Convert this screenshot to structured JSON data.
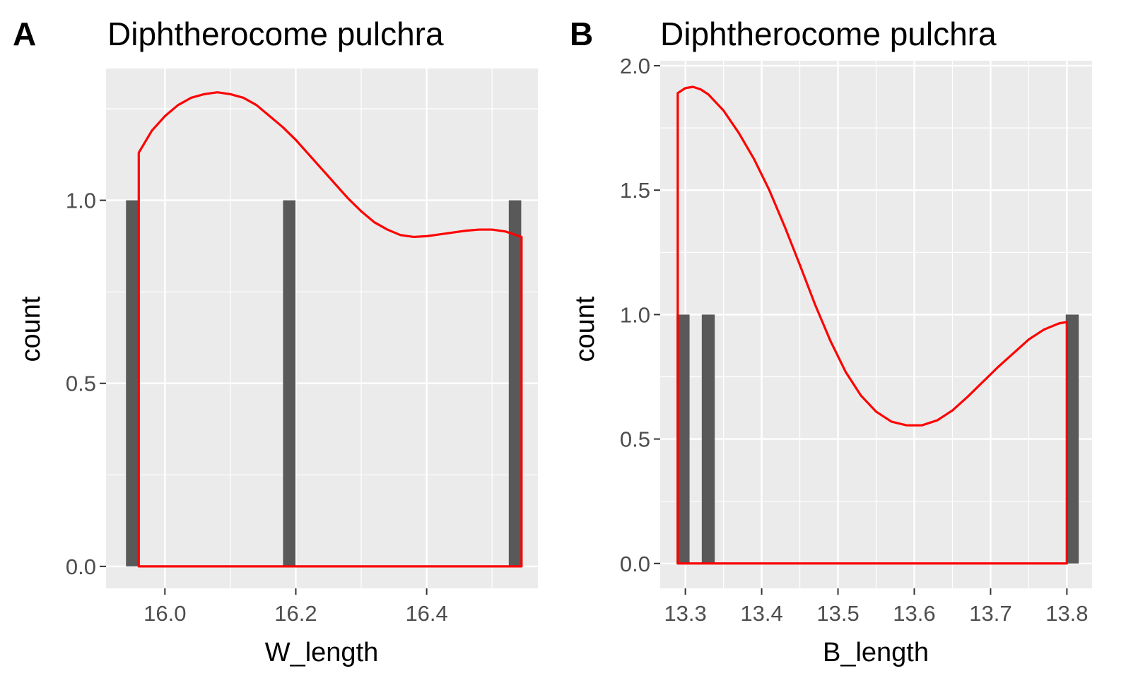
{
  "chart_data": [
    {
      "type": "bar",
      "panel_tag": "A",
      "title": "Diphtherocome pulchra",
      "xlabel": "W_length",
      "ylabel": "count",
      "xlim": [
        15.91,
        16.57
      ],
      "ylim": [
        -0.06,
        1.36
      ],
      "xticks": [
        16.0,
        16.2,
        16.4
      ],
      "xtick_labels": [
        "16.0",
        "16.2",
        "16.4"
      ],
      "yticks": [
        0.0,
        0.5,
        1.0
      ],
      "ytick_labels": [
        "0.0",
        "0.5",
        "1.0"
      ],
      "bar_width": 0.019,
      "bars": [
        {
          "x": 15.95,
          "count": 1
        },
        {
          "x": 16.19,
          "count": 1
        },
        {
          "x": 16.535,
          "count": 1
        }
      ],
      "density_color": "#ff0000",
      "bar_color": "#595959",
      "panel_bg": "#ebebeb",
      "grid": true,
      "density": {
        "x": [
          15.96,
          15.98,
          16.0,
          16.02,
          16.04,
          16.06,
          16.08,
          16.1,
          16.12,
          16.14,
          16.16,
          16.18,
          16.2,
          16.22,
          16.24,
          16.26,
          16.28,
          16.3,
          16.32,
          16.34,
          16.36,
          16.38,
          16.4,
          16.42,
          16.44,
          16.46,
          16.48,
          16.5,
          16.52,
          16.545
        ],
        "y": [
          1.13,
          1.19,
          1.23,
          1.26,
          1.28,
          1.29,
          1.295,
          1.29,
          1.28,
          1.26,
          1.23,
          1.2,
          1.165,
          1.125,
          1.085,
          1.045,
          1.005,
          0.97,
          0.94,
          0.92,
          0.905,
          0.9,
          0.902,
          0.907,
          0.912,
          0.917,
          0.92,
          0.92,
          0.915,
          0.9
        ]
      }
    },
    {
      "type": "bar",
      "panel_tag": "B",
      "title": "Diphtherocome pulchra",
      "xlabel": "B_length",
      "ylabel": "count",
      "xlim": [
        13.267,
        13.833
      ],
      "ylim": [
        -0.1,
        2.02
      ],
      "xticks": [
        13.3,
        13.4,
        13.5,
        13.6,
        13.7,
        13.8
      ],
      "xtick_labels": [
        "13.3",
        "13.4",
        "13.5",
        "13.6",
        "13.7",
        "13.8"
      ],
      "yticks": [
        0.0,
        0.5,
        1.0,
        1.5,
        2.0
      ],
      "ytick_labels": [
        "0.0",
        "0.5",
        "1.0",
        "1.5",
        "2.0"
      ],
      "bar_width": 0.017,
      "bars": [
        {
          "x": 13.297,
          "count": 1
        },
        {
          "x": 13.33,
          "count": 1
        },
        {
          "x": 13.807,
          "count": 1
        }
      ],
      "density_color": "#ff0000",
      "bar_color": "#595959",
      "panel_bg": "#ebebeb",
      "grid": true,
      "density": {
        "x": [
          13.29,
          13.3,
          13.31,
          13.32,
          13.33,
          13.35,
          13.37,
          13.39,
          13.41,
          13.43,
          13.45,
          13.47,
          13.49,
          13.51,
          13.53,
          13.55,
          13.57,
          13.59,
          13.61,
          13.63,
          13.65,
          13.67,
          13.69,
          13.71,
          13.73,
          13.75,
          13.77,
          13.79,
          13.8
        ],
        "y": [
          1.89,
          1.91,
          1.915,
          1.905,
          1.885,
          1.82,
          1.73,
          1.625,
          1.5,
          1.355,
          1.2,
          1.04,
          0.895,
          0.77,
          0.675,
          0.61,
          0.57,
          0.555,
          0.555,
          0.575,
          0.615,
          0.67,
          0.73,
          0.79,
          0.845,
          0.9,
          0.94,
          0.965,
          0.97
        ]
      }
    }
  ]
}
